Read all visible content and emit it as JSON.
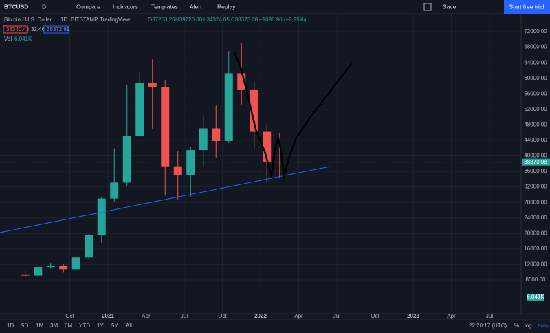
{
  "toolbar": {
    "symbol": "BTCUSD",
    "interval": "D",
    "buttons": [
      "Compare",
      "Indicators",
      "Templates",
      "Alert",
      "Replay"
    ],
    "save": "Save",
    "trial": "Start free trial"
  },
  "legend": {
    "name": "Bitcoin / U.S. Dollar",
    "interval": "1D",
    "exchange": "BITSTAMP",
    "source": "TradingView",
    "open": "O37253.26",
    "high": "H39720.00",
    "low": "L34324.05",
    "close": "C38373.08",
    "change": "+1098.90 (+2.95%)",
    "bid": "38340.43",
    "spread": "32.46",
    "ask": "38372.89",
    "vol_label": "Vol",
    "vol_value": "6.041K"
  },
  "chart_data": {
    "type": "candlestick",
    "x": [
      "2020-06",
      "2020-07",
      "2020-08",
      "2020-09",
      "2020-10",
      "2020-11",
      "2020-12",
      "2021-01",
      "2021-02",
      "2021-03",
      "2021-04",
      "2021-05",
      "2021-06",
      "2021-07",
      "2021-08",
      "2021-09",
      "2021-10",
      "2021-11",
      "2021-12",
      "2022-01",
      "2022-02"
    ],
    "open": [
      9450,
      9140,
      11350,
      11650,
      10780,
      13800,
      19700,
      28990,
      33110,
      45140,
      58790,
      57750,
      37300,
      35040,
      41490,
      47100,
      43820,
      61300,
      56950,
      46200,
      38480
    ],
    "high": [
      10380,
      11450,
      12480,
      12070,
      14100,
      19900,
      29300,
      41950,
      58350,
      61780,
      64850,
      59590,
      41330,
      42400,
      50500,
      52950,
      67000,
      69000,
      59100,
      47990,
      45820
    ],
    "low": [
      8900,
      8980,
      10960,
      9880,
      10400,
      13200,
      17600,
      28130,
      32300,
      44950,
      47050,
      30000,
      28800,
      29300,
      37330,
      39600,
      43280,
      53250,
      42000,
      32950,
      34320
    ],
    "close": [
      9140,
      11350,
      11650,
      10780,
      13800,
      19700,
      28990,
      33110,
      45140,
      58790,
      57750,
      37300,
      35040,
      41490,
      47100,
      43820,
      61300,
      56950,
      46200,
      38480,
      38373.08
    ],
    "last_price": 38373.08,
    "ylim": [
      730,
      75550
    ],
    "yticks": [
      {
        "value": 8000,
        "label": "8000.00"
      },
      {
        "value": 12000,
        "label": "12000.00"
      },
      {
        "value": 16000,
        "label": "16000.00"
      },
      {
        "value": 20000,
        "label": "20000.00"
      },
      {
        "value": 24000,
        "label": "24000.00"
      },
      {
        "value": 28000,
        "label": "28000.00"
      },
      {
        "value": 32000,
        "label": "32000.00"
      },
      {
        "value": 36000,
        "label": "36000.00"
      },
      {
        "value": 40000,
        "label": "40000.00"
      },
      {
        "value": 44000,
        "label": "44000.00"
      },
      {
        "value": 48000,
        "label": "48000.00"
      },
      {
        "value": 52000,
        "label": "52000.00"
      },
      {
        "value": 56000,
        "label": "56000.00"
      },
      {
        "value": 60000,
        "label": "60000.00"
      },
      {
        "value": 64000,
        "label": "64000.00"
      },
      {
        "value": 68000,
        "label": "68000.00"
      },
      {
        "value": 72000,
        "label": "72000.00"
      }
    ],
    "xticks": [
      {
        "value": "2020-10",
        "label": "Oct"
      },
      {
        "value": "2021-01",
        "label": "2021"
      },
      {
        "value": "2021-04",
        "label": "Apr"
      },
      {
        "value": "2021-07",
        "label": "Jul"
      },
      {
        "value": "2021-10",
        "label": "Oct"
      },
      {
        "value": "2022-01",
        "label": "2022"
      },
      {
        "value": "2022-04",
        "label": "Apr"
      },
      {
        "value": "2022-07",
        "label": "Jul"
      },
      {
        "value": "2022-10",
        "label": "Oct"
      },
      {
        "value": "2023-01",
        "label": "2023"
      },
      {
        "value": "2023-04",
        "label": "Apr"
      },
      {
        "value": "2023-07",
        "label": "Jul"
      }
    ],
    "up_color": "#26a69a",
    "down_color": "#ef5350",
    "grid": true
  },
  "bottom_bar": {
    "ranges": [
      "1D",
      "5D",
      "1M",
      "3M",
      "6M",
      "YTD",
      "1Y",
      "5Y",
      "All"
    ],
    "time": "22:20:17 (UTC)",
    "options": [
      "%",
      "log",
      "auto"
    ]
  }
}
